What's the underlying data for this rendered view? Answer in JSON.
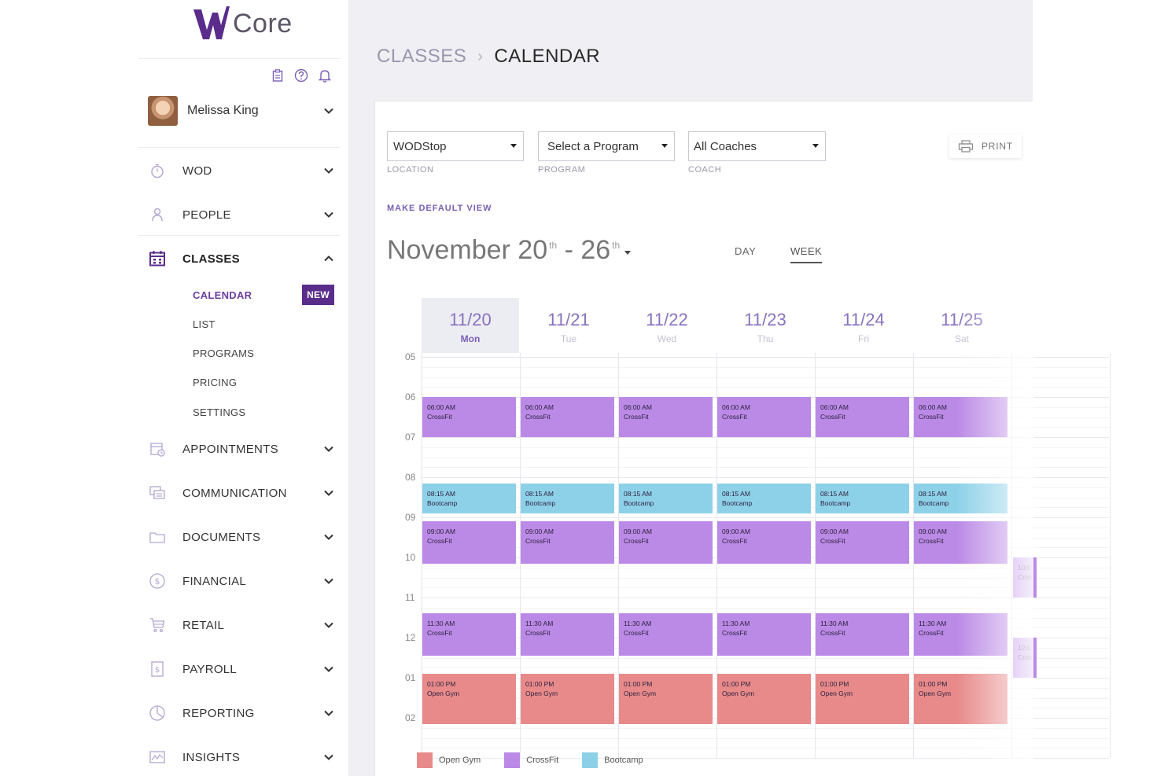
{
  "brand": {
    "name": "Core",
    "accent": "#5a2d8c"
  },
  "user": {
    "name": "Melissa King"
  },
  "top_icons": [
    "clipboard-icon",
    "help-icon",
    "bell-icon"
  ],
  "nav": {
    "wod": "WOD",
    "people": "PEOPLE",
    "classes": "CLASSES",
    "classes_sub": {
      "calendar": "CALENDAR",
      "calendar_badge": "NEW",
      "list": "LIST",
      "programs": "PROGRAMS",
      "pricing": "PRICING",
      "settings": "SETTINGS"
    },
    "appointments": "APPOINTMENTS",
    "communication": "COMMUNICATION",
    "documents": "DOCUMENTS",
    "financial": "FINANCIAL",
    "retail": "RETAIL",
    "payroll": "PAYROLL",
    "reporting": "REPORTING",
    "insights": "INSIGHTS"
  },
  "breadcrumb": {
    "section": "CLASSES",
    "page": "CALENDAR"
  },
  "filters": {
    "location": {
      "value": "WODStop",
      "label": "LOCATION"
    },
    "program": {
      "value": "Select a Program",
      "label": "PROGRAM"
    },
    "coach": {
      "value": "All Coaches",
      "label": "COACH"
    }
  },
  "print_label": "PRINT",
  "make_default_label": "MAKE DEFAULT VIEW",
  "date_range": {
    "start": "November 20",
    "start_suffix": "th",
    "sep": " - ",
    "end": "26",
    "end_suffix": "th"
  },
  "views": {
    "day": "DAY",
    "week": "WEEK",
    "selected": "week"
  },
  "days": [
    {
      "date": "11/20",
      "name": "Mon"
    },
    {
      "date": "11/21",
      "name": "Tue"
    },
    {
      "date": "11/22",
      "name": "Wed"
    },
    {
      "date": "11/23",
      "name": "Thu"
    },
    {
      "date": "11/24",
      "name": "Fri"
    },
    {
      "date": "11/25",
      "name": "Sat"
    }
  ],
  "active_day": 0,
  "hours": [
    "05",
    "06",
    "07",
    "08",
    "09",
    "10",
    "11",
    "12",
    "01",
    "02"
  ],
  "event_templates": [
    {
      "time": "06:00 AM",
      "name": "CrossFit",
      "type": "crossfit",
      "start": 6.0,
      "end": 7.0
    },
    {
      "time": "08:15 AM",
      "name": "Bootcamp",
      "type": "bootcamp",
      "start": 8.15,
      "end": 8.9
    },
    {
      "time": "09:00 AM",
      "name": "CrossFit",
      "type": "crossfit",
      "start": 9.1,
      "end": 10.15
    },
    {
      "time": "11:30 AM",
      "name": "CrossFit",
      "type": "crossfit",
      "start": 11.4,
      "end": 12.45
    },
    {
      "time": "01:00 PM",
      "name": "Open Gym",
      "type": "opengym",
      "start": 12.9,
      "end": 14.15
    }
  ],
  "partial_events": [
    {
      "time": "10:0",
      "name": "Cros",
      "type": "crossfit",
      "start": 10.0,
      "end": 11.0
    },
    {
      "time": "12:0",
      "name": "Cros",
      "type": "crossfit",
      "start": 12.0,
      "end": 13.0
    }
  ],
  "legend": [
    {
      "label": "Open Gym",
      "color": "#e88a8a"
    },
    {
      "label": "CrossFit",
      "color": "#bb8ae6"
    },
    {
      "label": "Bootcamp",
      "color": "#8dd1e8"
    }
  ]
}
